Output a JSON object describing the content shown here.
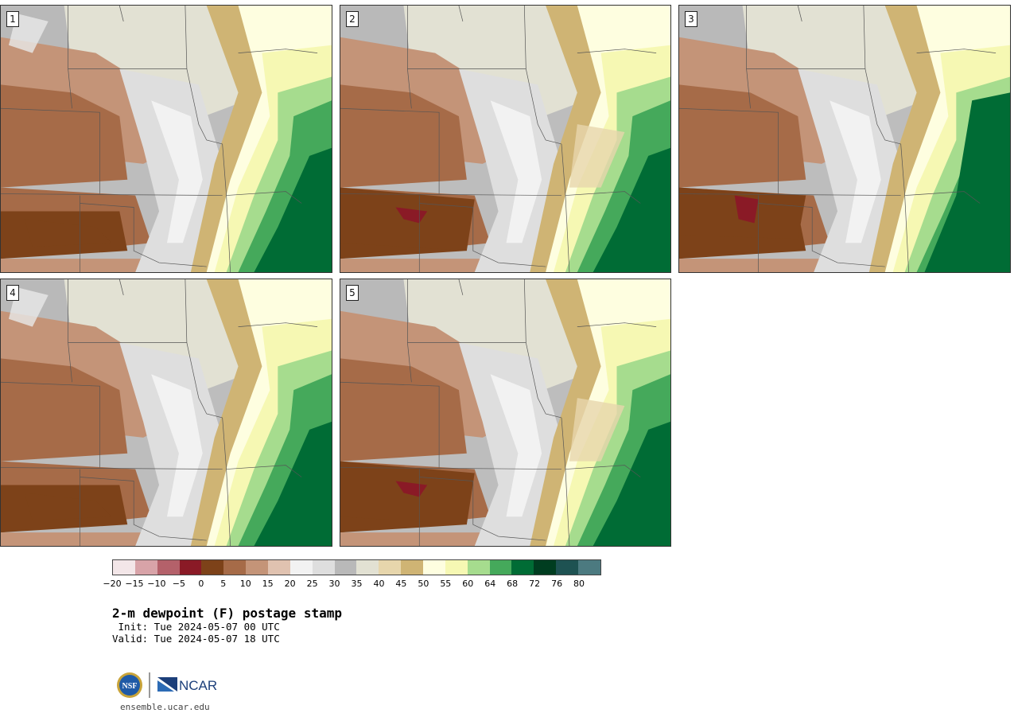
{
  "panels": [
    {
      "label": "1"
    },
    {
      "label": "2"
    },
    {
      "label": "3"
    },
    {
      "label": "4"
    },
    {
      "label": "5"
    }
  ],
  "colorbar": {
    "colors": [
      "#f3e6e8",
      "#d8a3a8",
      "#b4616a",
      "#8a1a26",
      "#7d4219",
      "#a66b48",
      "#c49478",
      "#e0c2b0",
      "#f2f2f2",
      "#dedede",
      "#b9b9b9",
      "#e2e1d3",
      "#e7d6ac",
      "#cfb474",
      "#fefee0",
      "#f6f8b3",
      "#a6dc8e",
      "#45a95b",
      "#006c35",
      "#003d20",
      "#1e5252",
      "#4c7a80"
    ],
    "tick_labels": [
      "−20",
      "−15",
      "−10",
      "−5",
      "0",
      "5",
      "10",
      "15",
      "20",
      "25",
      "30",
      "35",
      "40",
      "45",
      "50",
      "55",
      "60",
      "64",
      "68",
      "72",
      "76",
      "80"
    ]
  },
  "title": "2-m dewpoint (F) postage stamp",
  "init_line": " Init: Tue 2024-05-07 00 UTC",
  "valid_line": "Valid: Tue 2024-05-07 18 UTC",
  "logo": {
    "nsf_text": "NSF",
    "ncar_text": "NCAR"
  },
  "site": "ensemble.ucar.edu"
}
